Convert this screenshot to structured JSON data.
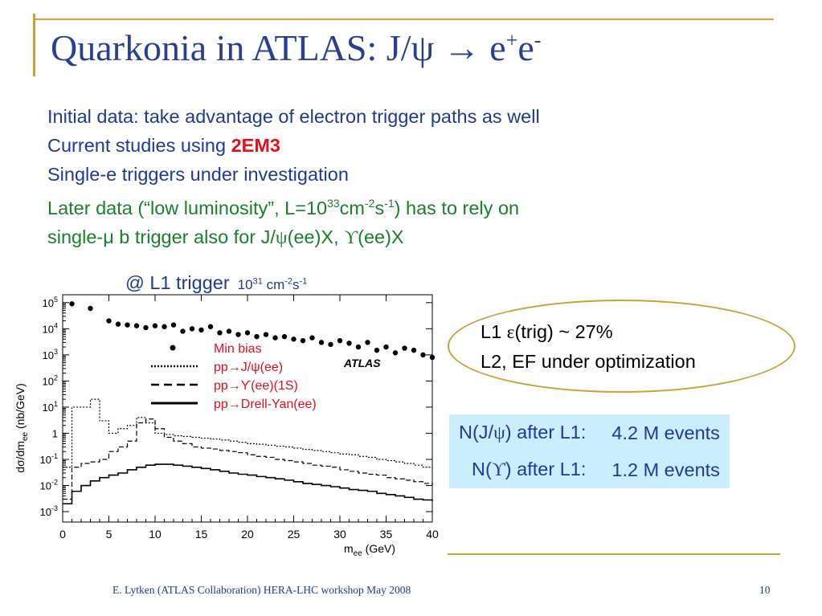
{
  "slide": {
    "title": {
      "text": "Quarkonia in ATLAS: J/ψ → e",
      "sup1": "+",
      "tail": "e",
      "sup2": "-"
    },
    "bullets": {
      "b1": "Initial data: take advantage of electron trigger paths as well",
      "b2a": "Current studies using ",
      "b2b": "2EM3",
      "b3": "Single-e triggers under investigation",
      "b4a": "Later data (“low luminosity”, L=10",
      "b4sup1": "33",
      "b4b": "cm",
      "b4sup2": "-2",
      "b4c": "s",
      "b4sup3": "-1",
      "b4d": ") has to rely on",
      "b5a": "single-μ b trigger also for J/",
      "b5psi": "ψ",
      "b5b": "(ee)X, ",
      "b5ups": "ϒ",
      "b5c": "(ee)X"
    },
    "l1": {
      "big": "@ L1 trigger",
      "base": "10",
      "exp1": "31",
      "unit1": " cm",
      "exp2": "-2",
      "unit2": "s",
      "exp3": "-1"
    },
    "oval": {
      "line1a": "L1 ",
      "eps": "ε",
      "line1b": "(trig) ~ 27%",
      "line2": "L2, EF under optimization"
    },
    "events": {
      "r1a": "N(J/",
      "r1psi": "ψ",
      "r1b": ") after L1:",
      "r1v": "4.2 M events",
      "r2a": "N(",
      "r2ups": "ϒ",
      "r2b": ") after L1:",
      "r2v": "1.2 M events"
    },
    "footer": "E. Lytken (ATLAS Collaboration) HERA-LHC workshop May 2008",
    "page": "10",
    "colors": {
      "title": "#2a3f8f",
      "text": "#1f3a93",
      "highlight": "#e0101c",
      "green": "#1a7f2a",
      "gold": "#c9a23a",
      "legend": "#e0101c",
      "table_bg": "#ccecff"
    }
  },
  "chart_data": {
    "type": "line",
    "xlabel": "m",
    "xlabel_sub": "ee",
    "xlabel_unit": " (GeV)",
    "ylabel": "dσ/dm",
    "ylabel_sub": "ee",
    "ylabel_unit": " (nb/GeV)",
    "xlim": [
      0,
      40
    ],
    "ylim": [
      0.0004,
      200000
    ],
    "log_y": true,
    "x_ticks": [
      0,
      5,
      10,
      15,
      20,
      25,
      30,
      35,
      40
    ],
    "y_tick_exps": [
      -3,
      -2,
      -1,
      0,
      1,
      2,
      3,
      4,
      5
    ],
    "y_tick_base": "10",
    "y_tick_one": "1",
    "logo": "ATLAS",
    "legend": [
      {
        "label": "Min bias",
        "style": "dot"
      },
      {
        "label": "pp→J/ψ(ee)",
        "style": "dotted"
      },
      {
        "label": "pp→ϒ(ee)(1S)",
        "style": "dashed"
      },
      {
        "label": "pp→Drell-Yan(ee)",
        "style": "solid"
      }
    ],
    "series": [
      {
        "key": "minbias",
        "style": "dot",
        "x": [
          1,
          3,
          5,
          6,
          7,
          8,
          9,
          10,
          11,
          12,
          13,
          14,
          15,
          16,
          17,
          18,
          19,
          20,
          21,
          22,
          23,
          24,
          25,
          26,
          27,
          28,
          29,
          30,
          31,
          32,
          33,
          34,
          35,
          36,
          37,
          38,
          39,
          40
        ],
        "y": [
          90000,
          60000,
          20000,
          15000,
          14000,
          13000,
          11000,
          13000,
          12000,
          14000,
          8000,
          10000,
          9000,
          12000,
          7000,
          8000,
          6000,
          7000,
          5000,
          6000,
          4500,
          5000,
          4000,
          3500,
          4500,
          3000,
          2500,
          3500,
          2800,
          2000,
          3000,
          1500,
          2000,
          1200,
          1800,
          1500,
          1000,
          800
        ]
      },
      {
        "key": "jpsi",
        "style": "dotted",
        "x": [
          0,
          1,
          2,
          3,
          4,
          5,
          6,
          7,
          8,
          9,
          10,
          11,
          12,
          13,
          14,
          15,
          16,
          17,
          18,
          19,
          20,
          21,
          22,
          23,
          24,
          25,
          26,
          27,
          28,
          29,
          30,
          31,
          32,
          33,
          34,
          35,
          36,
          37,
          38,
          39,
          40
        ],
        "y": [
          0.05,
          10,
          10,
          20,
          3,
          1,
          1.5,
          2,
          4,
          2.5,
          1,
          0.9,
          0.8,
          0.75,
          0.7,
          0.65,
          0.6,
          0.55,
          0.5,
          0.45,
          0.4,
          0.38,
          0.35,
          0.32,
          0.3,
          0.27,
          0.24,
          0.22,
          0.2,
          0.18,
          0.16,
          0.15,
          0.13,
          0.12,
          0.1,
          0.09,
          0.08,
          0.07,
          0.06,
          0.05,
          0.04
        ]
      },
      {
        "key": "upsilon",
        "style": "dashed",
        "x": [
          0,
          1,
          2,
          3,
          4,
          5,
          6,
          7,
          8,
          9,
          10,
          11,
          12,
          13,
          14,
          15,
          16,
          17,
          18,
          19,
          20,
          21,
          22,
          23,
          24,
          25,
          26,
          27,
          28,
          29,
          30,
          31,
          32,
          33,
          34,
          35,
          36,
          37,
          38,
          39,
          40
        ],
        "y": [
          0.003,
          0.05,
          0.07,
          0.08,
          0.1,
          0.2,
          0.3,
          0.5,
          2.5,
          3.5,
          1.5,
          0.7,
          0.5,
          0.4,
          0.3,
          0.27,
          0.25,
          0.22,
          0.2,
          0.18,
          0.15,
          0.13,
          0.12,
          0.1,
          0.09,
          0.08,
          0.07,
          0.06,
          0.055,
          0.05,
          0.04,
          0.035,
          0.03,
          0.027,
          0.025,
          0.02,
          0.018,
          0.016,
          0.014,
          0.012,
          0.01
        ]
      },
      {
        "key": "drellyan",
        "style": "solid",
        "x": [
          0,
          1,
          2,
          3,
          4,
          5,
          6,
          7,
          8,
          9,
          10,
          11,
          12,
          13,
          14,
          15,
          16,
          17,
          18,
          19,
          20,
          21,
          22,
          23,
          24,
          25,
          26,
          27,
          28,
          29,
          30,
          31,
          32,
          33,
          34,
          35,
          36,
          37,
          38,
          39,
          40
        ],
        "y": [
          0.002,
          0.006,
          0.01,
          0.015,
          0.02,
          0.025,
          0.03,
          0.04,
          0.05,
          0.06,
          0.065,
          0.065,
          0.06,
          0.055,
          0.05,
          0.045,
          0.04,
          0.035,
          0.03,
          0.027,
          0.025,
          0.022,
          0.02,
          0.018,
          0.016,
          0.014,
          0.012,
          0.011,
          0.01,
          0.009,
          0.008,
          0.007,
          0.0065,
          0.006,
          0.005,
          0.0045,
          0.004,
          0.0035,
          0.003,
          0.0028,
          0.0025
        ]
      }
    ]
  }
}
